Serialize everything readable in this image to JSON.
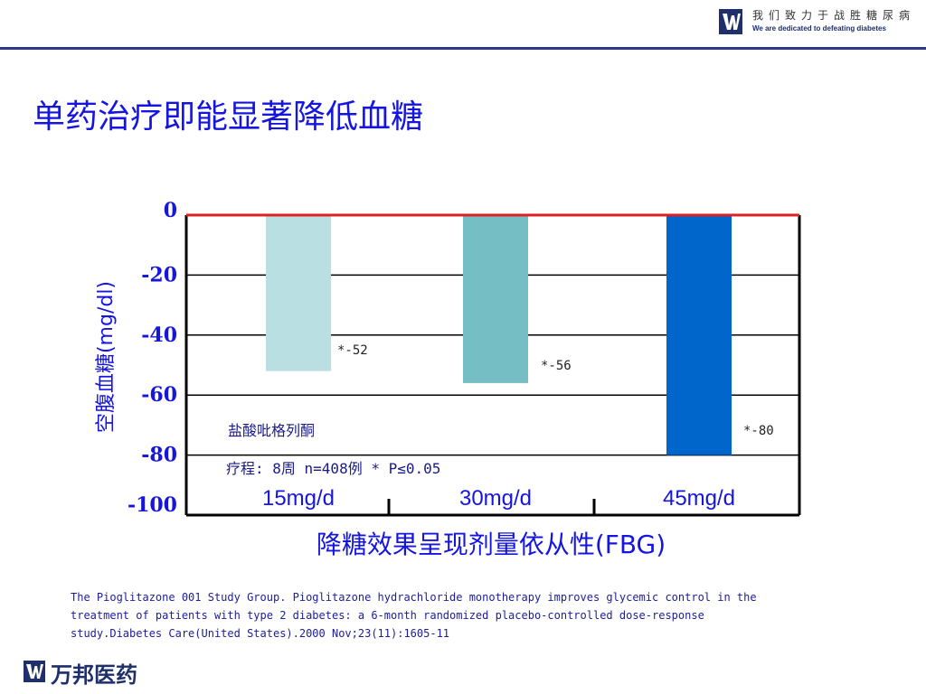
{
  "header": {
    "tagline_cn": "我们致力于战胜糖尿病",
    "tagline_en": "We are dedicated to defeating diabetes"
  },
  "title": "单药治疗即能显著降低血糖",
  "chart_data": {
    "type": "bar",
    "categories": [
      "15mg/d",
      "30mg/d",
      "45mg/d"
    ],
    "values": [
      -52,
      -56,
      -80
    ],
    "data_labels": [
      "*-52",
      "*-56",
      "*-80"
    ],
    "ylabel": "空腹血糖(mg/dl)",
    "xlabel": "降糖效果呈现剂量依从性(FBG)",
    "yticks": [
      "0",
      "-20",
      "-40",
      "-60",
      "-80",
      "-100"
    ],
    "ylim": [
      -100,
      0
    ],
    "grid": true,
    "bar_colors": [
      "#b9dfe3",
      "#75bec4",
      "#0066cc"
    ],
    "zero_line_color": "#e02020",
    "annotations": [
      "盐酸吡格列酮",
      "疗程: 8周 n=408例 * P≤0.05"
    ]
  },
  "reference": [
    "The Pioglitazone 001 Study Group. Pioglitazone hydrachloride monotherapy improves glycemic control in the",
    "treatment of patients with type 2 diabetes: a 6-month randomized placebo-controlled dose-response",
    "study.Diabetes Care(United States).2000 Nov;23(11):1605-11"
  ],
  "brand": "万邦医药",
  "colors": {
    "title": "#1515e0",
    "brand": "#1f2f6b",
    "axis_text": "#1515e0"
  }
}
